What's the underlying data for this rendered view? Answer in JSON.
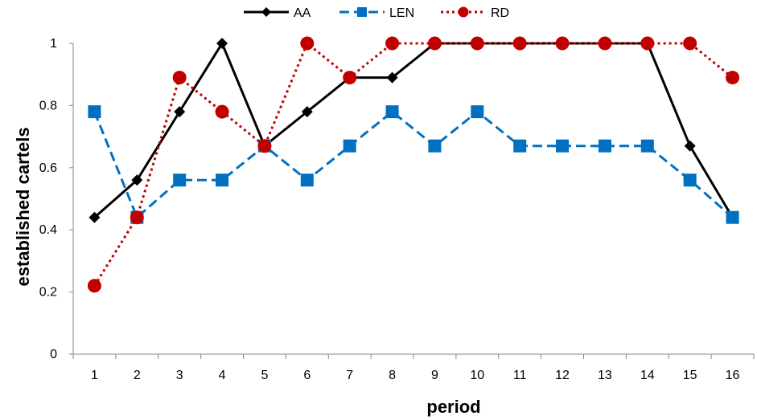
{
  "chart_data": {
    "type": "line",
    "title": "",
    "xlabel": "period",
    "ylabel": "established cartels",
    "x": [
      1,
      2,
      3,
      4,
      5,
      6,
      7,
      8,
      9,
      10,
      11,
      12,
      13,
      14,
      15,
      16
    ],
    "x_tick_labels": [
      "1",
      "2",
      "3",
      "4",
      "5",
      "6",
      "7",
      "8",
      "9",
      "10",
      "11",
      "12",
      "13",
      "14",
      "15",
      "16"
    ],
    "ylim": [
      0,
      1
    ],
    "y_ticks": [
      0,
      0.2,
      0.4,
      0.6,
      0.8,
      1
    ],
    "y_tick_labels": [
      "0",
      "0.2",
      "0.4",
      "0.6",
      "0.8",
      "1"
    ],
    "grid": false,
    "legend_position": "top-center",
    "series": [
      {
        "name": "AA",
        "color": "#000000",
        "line_style": "solid",
        "marker": "diamond",
        "values": [
          0.44,
          0.56,
          0.78,
          1.0,
          0.67,
          0.78,
          0.89,
          0.89,
          1.0,
          1.0,
          1.0,
          1.0,
          1.0,
          1.0,
          0.67,
          0.44
        ]
      },
      {
        "name": "LEN",
        "color": "#0070C0",
        "line_style": "dashed",
        "marker": "square",
        "values": [
          0.78,
          0.44,
          0.56,
          0.56,
          0.67,
          0.56,
          0.67,
          0.78,
          0.67,
          0.78,
          0.67,
          0.67,
          0.67,
          0.67,
          0.56,
          0.44
        ]
      },
      {
        "name": "RD",
        "color": "#C00000",
        "line_style": "dotted",
        "marker": "circle",
        "values": [
          0.22,
          0.44,
          0.89,
          0.78,
          0.67,
          1.0,
          0.89,
          1.0,
          1.0,
          1.0,
          1.0,
          1.0,
          1.0,
          1.0,
          1.0,
          0.89
        ]
      }
    ]
  }
}
